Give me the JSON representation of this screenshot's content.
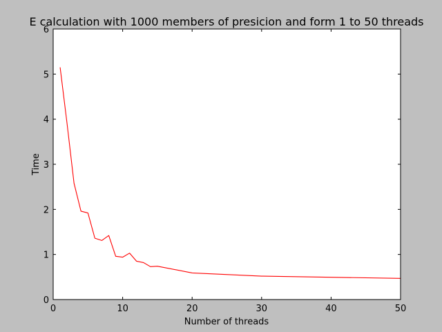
{
  "chart_data": {
    "type": "line",
    "title": "E calculation with 1000 members of presicion and form 1 to 50 threads",
    "xlabel": "Number of threads",
    "ylabel": "Time",
    "xlim": [
      0,
      50
    ],
    "ylim": [
      0,
      6
    ],
    "xticks": [
      0,
      10,
      20,
      30,
      40,
      50
    ],
    "yticks": [
      0,
      1,
      2,
      3,
      4,
      5,
      6
    ],
    "grid": false,
    "series": [
      {
        "color": "#ff0000",
        "x": [
          1,
          2,
          3,
          4,
          5,
          6,
          7,
          8,
          9,
          10,
          11,
          12,
          13,
          14,
          15,
          20,
          30,
          50
        ],
        "y": [
          5.15,
          3.9,
          2.58,
          1.96,
          1.92,
          1.36,
          1.31,
          1.42,
          0.96,
          0.94,
          1.03,
          0.85,
          0.82,
          0.73,
          0.74,
          0.59,
          0.52,
          0.47
        ]
      }
    ]
  }
}
